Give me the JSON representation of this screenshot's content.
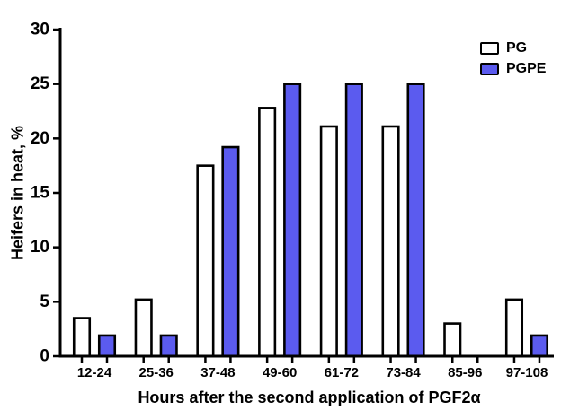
{
  "figure": {
    "background": "#ffffff",
    "text_color": "#000000"
  },
  "chart_data": {
    "type": "bar",
    "title": "",
    "xlabel": "Hours after the second application of PGF2α",
    "ylabel": "Heifers in heat, %",
    "categories": [
      "12-24",
      "25-36",
      "37-48",
      "49-60",
      "61-72",
      "73-84",
      "85-96",
      "97-108"
    ],
    "series": [
      {
        "name": "PG",
        "color": "#ffffff",
        "values": [
          3.5,
          5.2,
          17.5,
          22.8,
          21.1,
          21.1,
          3.0,
          5.2
        ]
      },
      {
        "name": "PGPE",
        "color": "#5b5bef",
        "values": [
          1.9,
          1.9,
          19.2,
          25.0,
          25.0,
          25.0,
          0.0,
          1.9
        ]
      }
    ],
    "ylim": [
      0,
      30
    ],
    "yticks": [
      0,
      5,
      10,
      15,
      20,
      25,
      30
    ],
    "bar_outline_color": "#000000",
    "axis_color": "#000000",
    "grid": false,
    "legend_position": "top-right"
  }
}
